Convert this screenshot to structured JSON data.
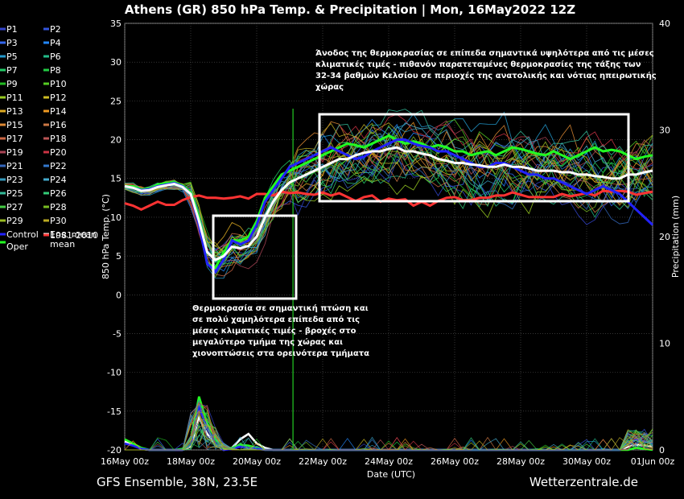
{
  "chart_data": {
    "type": "line",
    "title": "Athens  (GR)  850 hPa Temp. & Precipitation | Mon, 16May2022 12Z",
    "ylabel": "850 hPa Temp. (°C)",
    "ylabel_right": "Precipitation (mm)",
    "xlabel": "Date (UTC)",
    "ylim": [
      -20,
      35
    ],
    "ylim_right": [
      0,
      40
    ],
    "yticks": [
      "35",
      "30",
      "25",
      "20",
      "15",
      "10",
      "5",
      "0",
      "-5",
      "-10",
      "-15",
      "-20"
    ],
    "yticks_right": [
      "40",
      "30",
      "20",
      "10",
      "0"
    ],
    "xticks": [
      "16May 00z",
      "18May 00z",
      "20May 00z",
      "22May 00z",
      "24May 00z",
      "26May 00z",
      "28May 00z",
      "30May 00z",
      "01Jun 00z"
    ],
    "grid": true,
    "legend_placement": "left",
    "footer_left": "GFS Ensemble, 38N, 23.5E",
    "footer_right": "Wetterzentrale.de",
    "annotations": [
      {
        "lines": [
          "Άνοδος της θερμοκρασίας σε επίπεδα σημαντικά υψηλότερα από τις μέσες",
          "κλιματικές τιμές - πιθανόν παρατεταμένες θερμοκρασίες της τάξης των",
          "32-34 βαθμών Κελσίου σε περιοχές της ανατολικής και νότιας ηπειρωτικής",
          "χώρας"
        ]
      },
      {
        "lines": [
          "Θερμοκρασία σε σημαντική πτώση και",
          "σε πολύ χαμηλότερα επίπεδα από τις",
          "μέσες κλιματικές τιμές - βροχές στο",
          "μεγαλύτερο τμήμα της χώρας και",
          "χιονοπτώσεις στα ορεινότερα τμήματα"
        ]
      }
    ],
    "days": [
      0,
      0.25,
      0.5,
      0.75,
      1,
      1.25,
      1.5,
      1.75,
      2,
      2.25,
      2.5,
      2.75,
      3,
      3.25,
      3.5,
      3.75,
      4,
      4.25,
      4.5,
      4.75,
      5,
      5.25,
      5.5,
      5.75,
      6,
      6.25,
      6.5,
      6.75,
      7,
      7.25,
      7.5,
      7.75,
      8,
      8.25,
      8.5,
      8.75,
      9,
      9.25,
      9.5,
      9.75,
      10,
      10.25,
      10.5,
      10.75,
      11,
      11.25,
      11.5,
      11.75,
      12,
      12.25,
      12.5,
      12.75,
      13,
      13.25,
      13.5,
      13.75,
      14,
      14.25,
      14.5,
      14.75,
      15,
      15.25,
      15.5,
      15.75,
      16
    ],
    "series": [
      {
        "name": "Control",
        "color": "#2222ff",
        "values": [
          14,
          13.8,
          13.5,
          13.6,
          14,
          14.2,
          14.4,
          14,
          13,
          9,
          4,
          3,
          4.5,
          7,
          6.5,
          7,
          9,
          12,
          13.5,
          15,
          16.5,
          17,
          17.5,
          18,
          18.5,
          19,
          18.5,
          18,
          17.5,
          17.8,
          18.5,
          19,
          19.5,
          20,
          20,
          19.5,
          19.2,
          19,
          18.5,
          18.5,
          18,
          17.5,
          17,
          16.5,
          16.5,
          17,
          17,
          16.5,
          16,
          15.5,
          15.5,
          15,
          15,
          14.5,
          14,
          13.5,
          13,
          13.5,
          14,
          13.5,
          13,
          12,
          11,
          10,
          9
        ]
      },
      {
        "name": "Ens. mean",
        "color": "#ffffff",
        "values": [
          14,
          13.8,
          13.4,
          13.5,
          13.9,
          14.1,
          14.3,
          13.9,
          13,
          9.5,
          5.5,
          4.5,
          5,
          6.2,
          6,
          6.3,
          7.5,
          10,
          12,
          13.5,
          14.5,
          15,
          15.5,
          16,
          16.5,
          17,
          17.5,
          17.5,
          18,
          18.3,
          18.5,
          18.5,
          18.8,
          19,
          18.5,
          18.5,
          18.2,
          18,
          17.5,
          17.3,
          17,
          17,
          16.8,
          16.7,
          16.5,
          16.5,
          16.8,
          16.5,
          16.5,
          16.3,
          16,
          16,
          16,
          15.8,
          15.8,
          15.5,
          15.5,
          15.3,
          15.2,
          15,
          15,
          15.5,
          15.5,
          15.8,
          16
        ]
      },
      {
        "name": "Oper",
        "color": "#22ff22",
        "values": [
          14,
          14,
          13.6,
          13.7,
          14.2,
          14.4,
          14.5,
          14.1,
          13.2,
          10,
          4,
          3.5,
          5.5,
          7,
          7,
          7.5,
          9.5,
          12.5,
          14,
          15.5,
          16,
          16.5,
          17,
          17.5,
          18,
          18.5,
          19,
          19.5,
          19.3,
          19,
          19.5,
          20,
          20.5,
          20,
          19.5,
          19.8,
          19.5,
          19,
          19.3,
          19,
          18.5,
          18.5,
          18,
          18.3,
          18.5,
          18,
          18.5,
          19,
          18.8,
          18.5,
          18.2,
          18,
          18.5,
          18,
          17.5,
          18,
          18.5,
          19,
          18.5,
          18.7,
          18.5,
          18,
          17.5,
          17.8,
          18
        ]
      },
      {
        "name": "1981-2010 mean",
        "color": "#ff3333",
        "values": [
          11.8,
          11.5,
          11,
          11.5,
          12,
          11.6,
          11.6,
          12.2,
          12.6,
          12.8,
          12.5,
          12.5,
          12.4,
          12.5,
          12.7,
          12.4,
          13,
          13,
          12.8,
          13.3,
          13.1,
          13.2,
          13,
          12.9,
          13.2,
          12.8,
          13.1,
          12.6,
          12.1,
          12.6,
          12.8,
          12,
          12.4,
          12.2,
          12.3,
          11.5,
          12,
          11.5,
          12.1,
          12.5,
          12.6,
          12.2,
          12.2,
          12.5,
          12.5,
          12.8,
          12.8,
          13.2,
          12.9,
          12.6,
          12.6,
          12.6,
          12.6,
          13,
          12.7,
          12.9,
          13.1,
          12.8,
          13.4,
          13.3,
          13.4,
          13.3,
          12.9,
          13.1,
          13.3
        ]
      }
    ],
    "precip_series": [
      {
        "name": "Ens. mean",
        "color": "#ffffff",
        "values": [
          0.8,
          0.5,
          0.1,
          0,
          0,
          0,
          0,
          0,
          0.3,
          3,
          1.5,
          0.5,
          0,
          0.2,
          1,
          1.5,
          0.6,
          0.2,
          0,
          0,
          0,
          0,
          0,
          0,
          0,
          0,
          0,
          0,
          0,
          0,
          0,
          0,
          0,
          0,
          0,
          0,
          0,
          0,
          0,
          0,
          0,
          0,
          0,
          0,
          0,
          0,
          0,
          0,
          0,
          0,
          0,
          0,
          0,
          0,
          0,
          0,
          0,
          0,
          0,
          0,
          0,
          0.3,
          0.5,
          0.4,
          0.3
        ]
      },
      {
        "name": "Oper",
        "color": "#22ff22",
        "values": [
          1,
          0.6,
          0.2,
          0,
          0,
          0,
          0,
          0.1,
          1,
          5,
          2.5,
          1,
          0.1,
          0.2,
          0.5,
          0.4,
          0.2,
          0,
          0,
          0,
          0,
          0,
          0,
          0,
          0,
          0,
          0,
          0,
          0,
          0,
          0,
          0,
          0,
          0,
          0,
          0,
          0,
          0,
          0,
          0,
          0,
          0,
          0,
          0,
          0,
          0,
          0,
          0,
          0,
          0,
          0,
          0,
          0,
          0,
          0,
          0,
          0,
          0,
          0,
          0,
          0,
          0,
          0.2,
          0.1,
          0
        ]
      },
      {
        "name": "Control",
        "color": "#2222ff",
        "values": [
          0.6,
          0.4,
          0.1,
          0,
          0,
          0,
          0,
          0,
          0.5,
          4,
          2,
          0.6,
          0,
          0.1,
          0.3,
          0.2,
          0.1,
          0,
          0,
          0,
          0,
          0,
          0,
          0,
          0,
          0,
          0,
          0,
          0,
          0,
          0,
          0,
          0,
          0,
          0,
          0,
          0,
          0,
          0,
          0,
          0,
          0,
          0,
          0,
          0,
          0,
          0,
          0,
          0,
          0,
          0,
          0,
          0,
          0,
          0,
          0,
          0,
          0,
          0,
          0,
          0,
          0.5,
          1,
          0.8,
          0.6
        ]
      }
    ]
  },
  "legend": {
    "rows": [
      {
        "left": {
          "label": "P1",
          "color": "#3344cc"
        },
        "right": {
          "label": "P2",
          "color": "#3355dd"
        }
      },
      {
        "left": {
          "label": "P3",
          "color": "#3366ee"
        },
        "right": {
          "label": "P4",
          "color": "#2288ff"
        }
      },
      {
        "left": {
          "label": "P5",
          "color": "#2299cc"
        },
        "right": {
          "label": "P6",
          "color": "#22bb88"
        }
      },
      {
        "left": {
          "label": "P7",
          "color": "#22cc66"
        },
        "right": {
          "label": "P8",
          "color": "#22cc44"
        }
      },
      {
        "left": {
          "label": "P9",
          "color": "#22bb22"
        },
        "right": {
          "label": "P10",
          "color": "#55cc22"
        }
      },
      {
        "left": {
          "label": "P11",
          "color": "#99cc22"
        },
        "right": {
          "label": "P12",
          "color": "#ccbb22"
        }
      },
      {
        "left": {
          "label": "P13",
          "color": "#ddaa22"
        },
        "right": {
          "label": "P14",
          "color": "#ee9922"
        }
      },
      {
        "left": {
          "label": "P15",
          "color": "#dd8833"
        },
        "right": {
          "label": "P16",
          "color": "#cc7744"
        }
      },
      {
        "left": {
          "label": "P17",
          "color": "#cc6644"
        },
        "right": {
          "label": "P18",
          "color": "#bb5555"
        }
      },
      {
        "left": {
          "label": "P19",
          "color": "#aa4455"
        },
        "right": {
          "label": "P20",
          "color": "#cc3344"
        }
      },
      {
        "left": {
          "label": "P21",
          "color": "#3366bb"
        },
        "right": {
          "label": "P22",
          "color": "#3377cc"
        }
      },
      {
        "left": {
          "label": "P23",
          "color": "#3399bb"
        },
        "right": {
          "label": "P24",
          "color": "#44aacc"
        }
      },
      {
        "left": {
          "label": "P25",
          "color": "#33bb99"
        },
        "right": {
          "label": "P26",
          "color": "#33cc77"
        }
      },
      {
        "left": {
          "label": "P27",
          "color": "#44cc44"
        },
        "right": {
          "label": "P28",
          "color": "#77bb22"
        }
      },
      {
        "left": {
          "label": "P29",
          "color": "#99bb22"
        },
        "right": {
          "label": "P30",
          "color": "#bbaa22"
        }
      },
      {
        "left": {
          "label": "Control",
          "color": "#2222ff"
        },
        "right": {
          "label": "Ens. mean",
          "color": "#ffffff"
        }
      }
    ],
    "oper": {
      "label": "Oper",
      "color": "#22ff22"
    },
    "clim": {
      "label": "1981-2010",
      "label2": "mean",
      "color": "#ff3333"
    }
  }
}
